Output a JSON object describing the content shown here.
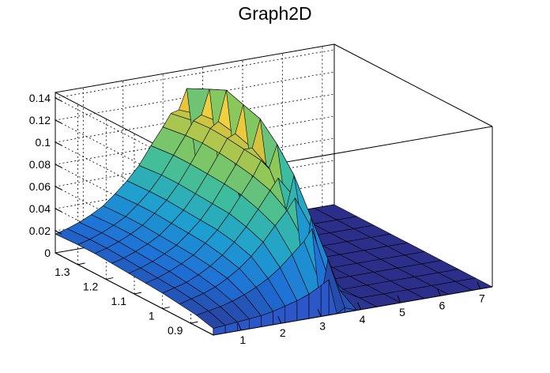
{
  "chart_data": {
    "type": "surface3d",
    "title": "Graph2D",
    "xlabel": "",
    "ylabel": "",
    "zlabel": "",
    "x_ticks": [
      1,
      2,
      3,
      4,
      5,
      6,
      7
    ],
    "y_ticks": [
      0.9,
      1,
      1.1,
      1.2,
      1.3
    ],
    "z_ticks": [
      0,
      0.02,
      0.04,
      0.06,
      0.08,
      0.1,
      0.12,
      0.14
    ],
    "xlim": [
      0.3,
      7.3
    ],
    "ylim": [
      0.82,
      1.38
    ],
    "zlim": [
      0,
      0.145
    ],
    "grid": true,
    "colormap": [
      "#2b2f8a",
      "#1f6fd6",
      "#1e9fd0",
      "#3cbca0",
      "#8cc85a",
      "#e6c23a",
      "#fbe94b"
    ],
    "x_grid": [
      0.3,
      0.6,
      0.9,
      1.2,
      1.5,
      1.8,
      2.1,
      2.4,
      2.7,
      3.0,
      3.2,
      3.4,
      3.6,
      3.9,
      4.4,
      5.0,
      5.6,
      6.2,
      6.8,
      7.3
    ],
    "y_grid": [
      0.82,
      0.88,
      0.94,
      1.0,
      1.06,
      1.12,
      1.18,
      1.24,
      1.3,
      1.38
    ],
    "z_values": [
      [
        0.006,
        0.007,
        0.008,
        0.009,
        0.01,
        0.012,
        0.015,
        0.018,
        0.022,
        0.028,
        0.032,
        0.0,
        0.004,
        0.0,
        0.0,
        0.0,
        0.0,
        0.0,
        0.0,
        0.0
      ],
      [
        0.01,
        0.012,
        0.014,
        0.017,
        0.021,
        0.026,
        0.032,
        0.04,
        0.05,
        0.06,
        0.07,
        0.0,
        0.04,
        0.01,
        0.0,
        0.0,
        0.0,
        0.0,
        0.0,
        0.0
      ],
      [
        0.012,
        0.015,
        0.018,
        0.022,
        0.028,
        0.035,
        0.044,
        0.055,
        0.068,
        0.08,
        0.09,
        0.02,
        0.07,
        0.02,
        0.0,
        0.0,
        0.0,
        0.0,
        0.0,
        0.0
      ],
      [
        0.014,
        0.017,
        0.02,
        0.025,
        0.031,
        0.039,
        0.049,
        0.061,
        0.075,
        0.09,
        0.1,
        0.07,
        0.1,
        0.03,
        0.0,
        0.0,
        0.0,
        0.0,
        0.0,
        0.0
      ],
      [
        0.015,
        0.018,
        0.022,
        0.027,
        0.033,
        0.042,
        0.052,
        0.065,
        0.08,
        0.095,
        0.108,
        0.1,
        0.12,
        0.04,
        0.0,
        0.0,
        0.0,
        0.0,
        0.0,
        0.0
      ],
      [
        0.016,
        0.019,
        0.023,
        0.028,
        0.034,
        0.043,
        0.053,
        0.066,
        0.082,
        0.098,
        0.11,
        0.11,
        0.135,
        0.05,
        0.0,
        0.0,
        0.0,
        0.0,
        0.0,
        0.0
      ],
      [
        0.017,
        0.02,
        0.024,
        0.029,
        0.035,
        0.044,
        0.054,
        0.067,
        0.083,
        0.1,
        0.112,
        0.115,
        0.14,
        0.05,
        0.0,
        0.0,
        0.0,
        0.0,
        0.0,
        0.0
      ],
      [
        0.018,
        0.021,
        0.025,
        0.03,
        0.036,
        0.045,
        0.055,
        0.068,
        0.084,
        0.101,
        0.113,
        0.118,
        0.145,
        0.05,
        0.0,
        0.0,
        0.0,
        0.0,
        0.0,
        0.0
      ],
      [
        0.018,
        0.021,
        0.025,
        0.03,
        0.036,
        0.045,
        0.055,
        0.068,
        0.084,
        0.1,
        0.112,
        0.116,
        0.138,
        0.045,
        0.0,
        0.0,
        0.0,
        0.0,
        0.0,
        0.0
      ],
      [
        0.017,
        0.02,
        0.024,
        0.029,
        0.035,
        0.044,
        0.054,
        0.066,
        0.082,
        0.097,
        0.108,
        0.11,
        0.128,
        0.04,
        0.0,
        0.0,
        0.0,
        0.0,
        0.0,
        0.0
      ]
    ]
  }
}
